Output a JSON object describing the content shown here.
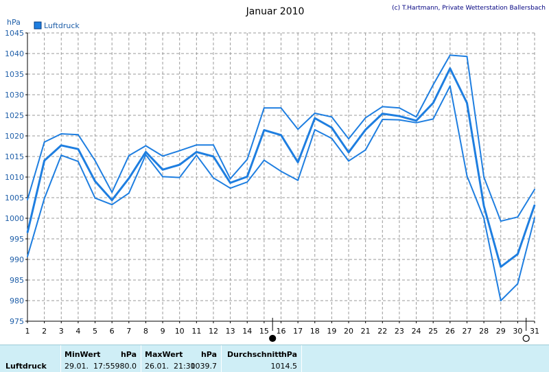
{
  "chart_data": {
    "type": "line",
    "title": "Januar 2010",
    "credit": "(c) T.Hartmann, Private Wetterstation Ballersbach",
    "ylabel": "hPa",
    "xlabel": "",
    "ylim": [
      975,
      1045
    ],
    "y_ticks": [
      975,
      980,
      985,
      990,
      995,
      1000,
      1005,
      1010,
      1015,
      1020,
      1025,
      1030,
      1035,
      1040,
      1045
    ],
    "x": [
      1,
      2,
      3,
      4,
      5,
      6,
      7,
      8,
      9,
      10,
      11,
      12,
      13,
      14,
      15,
      16,
      17,
      18,
      19,
      20,
      21,
      22,
      23,
      24,
      25,
      26,
      27,
      28,
      29,
      30,
      31
    ],
    "legend": {
      "label": "Luftdruck",
      "position": "top-left",
      "color": "#1e7ee0"
    },
    "grid": true,
    "line_color": "#1e7ee0",
    "series": [
      {
        "role": "max",
        "values": [
          1004.5,
          1018.5,
          1020.5,
          1020.3,
          1014,
          1006.3,
          1015.2,
          1017.6,
          1015.1,
          1016.4,
          1017.8,
          1017.8,
          1009.6,
          1014.3,
          1026.8,
          1026.8,
          1021.6,
          1025.5,
          1024.6,
          1019.3,
          1024.4,
          1027.1,
          1026.8,
          1024.6,
          1032.4,
          1039.6,
          1039.3,
          1010,
          999.3,
          1000.3,
          1007
        ]
      },
      {
        "role": "mean",
        "values": [
          996.5,
          1014,
          1017.7,
          1016.8,
          1009,
          1004.4,
          1009.7,
          1016.1,
          1011.8,
          1013,
          1016.1,
          1015,
          1008.6,
          1010.1,
          1021.4,
          1020.2,
          1013.6,
          1024.3,
          1022,
          1016,
          1021.5,
          1025.4,
          1024.8,
          1023.7,
          1028,
          1036.4,
          1028,
          1003,
          988.2,
          991.3,
          1003.2
        ]
      },
      {
        "role": "min",
        "values": [
          990.7,
          1004.8,
          1015.3,
          1013.8,
          1004.9,
          1003.3,
          1006.1,
          1015.4,
          1010.1,
          1009.9,
          1015.3,
          1009.8,
          1007.3,
          1008.8,
          1014.1,
          1011.4,
          1009.2,
          1021.5,
          1019.4,
          1013.9,
          1016.6,
          1024,
          1023.9,
          1023.2,
          1024.1,
          1032.1,
          1010.3,
          1000,
          980,
          984.1,
          1000.1
        ]
      }
    ],
    "markers": [
      {
        "x": 15.5,
        "symbol": "filled-circle"
      },
      {
        "x": 30.5,
        "symbol": "open-circle"
      }
    ]
  },
  "stats": {
    "row_label": "Luftdruck",
    "min": {
      "header": "MinWert",
      "unit": "hPa",
      "datetime": "29.01.  17:55",
      "value": "980.0"
    },
    "max": {
      "header": "MaxWert",
      "unit": "hPa",
      "datetime": "26.01.  21:30",
      "value": "1039.7"
    },
    "avg": {
      "header": "Durchschnitt",
      "unit": "hPa",
      "value": "1014.5"
    }
  }
}
